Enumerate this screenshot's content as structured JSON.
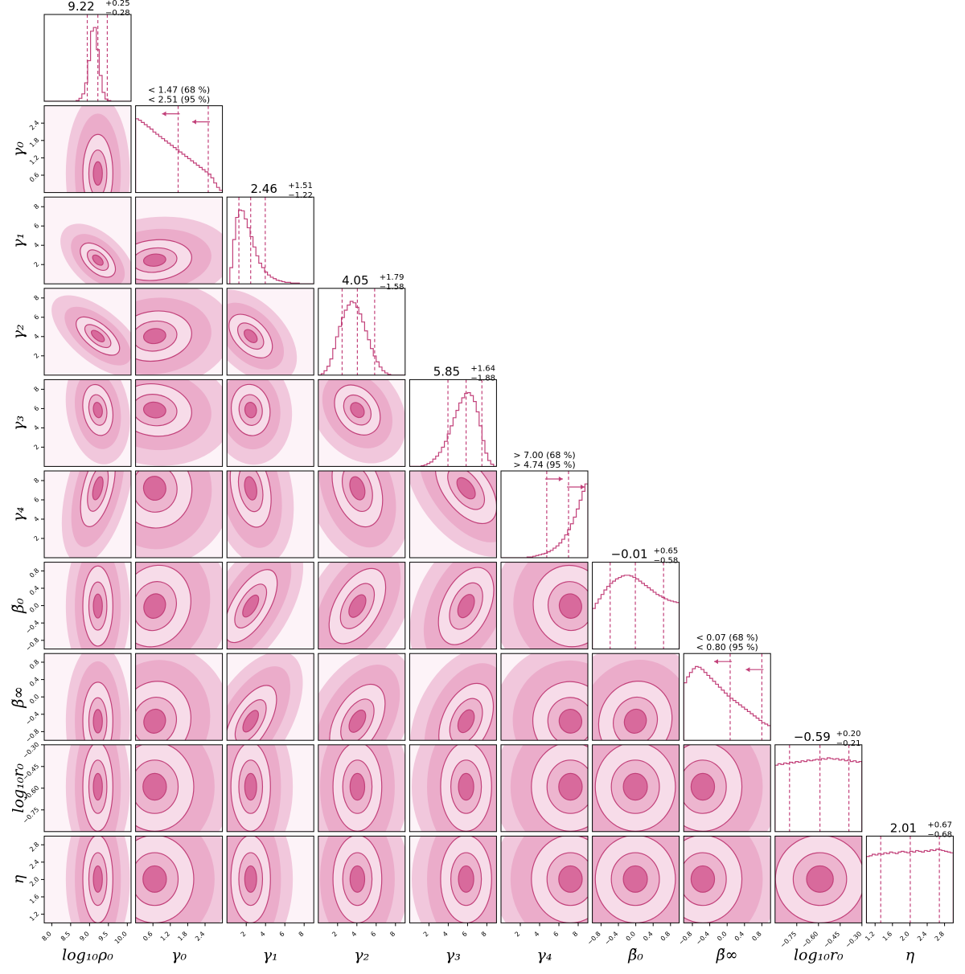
{
  "chart_data": {
    "type": "corner",
    "colors": {
      "main": "#c2417a",
      "fill": "#e8a3c4",
      "light": "#f6dbe8"
    },
    "params": [
      {
        "label": "log₁₀ρ₀",
        "range": [
          7.8,
          10.1
        ],
        "ticks": [
          "8.0",
          "8.5",
          "9.0",
          "9.5",
          "10.0"
        ],
        "tickvals": [
          8.0,
          8.5,
          9.0,
          9.5,
          10.0
        ],
        "title": {
          "kind": "value",
          "value": "9.22",
          "plus": "+0.25",
          "minus": "−0.28"
        },
        "quantiles": [
          8.94,
          9.22,
          9.47
        ],
        "hist": [
          0,
          0,
          0,
          0,
          0,
          0,
          0,
          0,
          0,
          0,
          0,
          1,
          4,
          10,
          25,
          55,
          95,
          100,
          70,
          35,
          12,
          3,
          1,
          0,
          0,
          0,
          0,
          0,
          0,
          0
        ]
      },
      {
        "label": "γ₀",
        "range": [
          0.0,
          3.0
        ],
        "ticks": [
          "0.6",
          "1.2",
          "1.8",
          "2.4"
        ],
        "tickvals": [
          0.6,
          1.2,
          1.8,
          2.4
        ],
        "title": {
          "kind": "limit",
          "l68": "< 1.47 (68 %)",
          "l95": "< 2.51 (95 %)"
        },
        "arrows": [
          1.47,
          2.51
        ],
        "arrowdir": "left",
        "hist": [
          100,
          98,
          95,
          92,
          89,
          86,
          82,
          79,
          76,
          73,
          70,
          67,
          64,
          61,
          58,
          55,
          52,
          49,
          46,
          43,
          40,
          37,
          34,
          31,
          28,
          25,
          20,
          13,
          7,
          3
        ]
      },
      {
        "label": "γ₁",
        "range": [
          0.0,
          9.0
        ],
        "ticks": [
          "2",
          "4",
          "6",
          "8"
        ],
        "tickvals": [
          2,
          4,
          6,
          8
        ],
        "title": {
          "kind": "value",
          "value": "2.46",
          "plus": "+1.51",
          "minus": "−1.22"
        },
        "quantiles": [
          1.24,
          2.46,
          3.97
        ],
        "hist": [
          0,
          22,
          60,
          90,
          100,
          99,
          88,
          76,
          64,
          50,
          38,
          28,
          22,
          16,
          12,
          9,
          7,
          5,
          4,
          3,
          2,
          2,
          1,
          1,
          1,
          0,
          0,
          0,
          0,
          0
        ]
      },
      {
        "label": "γ₂",
        "range": [
          0.0,
          9.0
        ],
        "ticks": [
          "2",
          "4",
          "6",
          "8"
        ],
        "tickvals": [
          2,
          4,
          6,
          8
        ],
        "title": {
          "kind": "value",
          "value": "4.05",
          "plus": "+1.79",
          "minus": "−1.58"
        },
        "quantiles": [
          2.47,
          4.05,
          5.84
        ],
        "hist": [
          0,
          2,
          6,
          12,
          22,
          36,
          52,
          66,
          78,
          88,
          95,
          100,
          98,
          92,
          83,
          72,
          60,
          48,
          36,
          26,
          18,
          11,
          6,
          3,
          1,
          0,
          0,
          0,
          0,
          0
        ]
      },
      {
        "label": "γ₃",
        "range": [
          0.0,
          9.0
        ],
        "ticks": [
          "2",
          "4",
          "6",
          "8"
        ],
        "tickvals": [
          2,
          4,
          6,
          8
        ],
        "title": {
          "kind": "value",
          "value": "5.85",
          "plus": "+1.64",
          "minus": "−1.88"
        },
        "quantiles": [
          3.97,
          5.85,
          7.49
        ],
        "hist": [
          0,
          0,
          0,
          0,
          1,
          2,
          4,
          6,
          10,
          14,
          19,
          26,
          34,
          44,
          55,
          66,
          76,
          86,
          93,
          99,
          100,
          96,
          88,
          74,
          55,
          35,
          18,
          8,
          3,
          0
        ]
      },
      {
        "label": "γ₄",
        "range": [
          0.0,
          9.0
        ],
        "ticks": [
          "2",
          "4",
          "6",
          "8"
        ],
        "tickvals": [
          2,
          4,
          6,
          8
        ],
        "title": {
          "kind": "limit",
          "l68": "> 7.00 (68 %)",
          "l95": "> 4.74 (95 %)"
        },
        "arrows": [
          4.74,
          7.0
        ],
        "arrowdir": "right",
        "hist": [
          0,
          0,
          0,
          0,
          0,
          0,
          0,
          0,
          0,
          1,
          1,
          2,
          3,
          4,
          5,
          6,
          8,
          10,
          13,
          16,
          20,
          25,
          31,
          38,
          46,
          55,
          66,
          78,
          90,
          100
        ]
      },
      {
        "label": "β̃₀",
        "range": [
          -1.0,
          1.0
        ],
        "ticks": [
          "−0.8",
          "−0.4",
          "0.0",
          "0.4",
          "0.8"
        ],
        "tickvals": [
          -0.8,
          -0.4,
          0.0,
          0.4,
          0.8
        ],
        "title": {
          "kind": "value",
          "value": "−0.01",
          "plus": "+0.65",
          "minus": "−0.58"
        },
        "quantiles": [
          -0.59,
          -0.01,
          0.64
        ],
        "hist": [
          55,
          62,
          68,
          74,
          80,
          85,
          89,
          92,
          95,
          97,
          99,
          100,
          100,
          99,
          97,
          95,
          92,
          89,
          86,
          83,
          80,
          77,
          74,
          72,
          70,
          68,
          66,
          65,
          64,
          63
        ]
      },
      {
        "label": "β̃∞",
        "range": [
          -1.0,
          1.0
        ],
        "ticks": [
          "−0.8",
          "−0.4",
          "0.0",
          "0.4",
          "0.8"
        ],
        "tickvals": [
          -0.8,
          -0.4,
          0.0,
          0.4,
          0.8
        ],
        "title": {
          "kind": "limit",
          "l68": "< 0.07 (68 %)",
          "l95": "< 0.80 (95 %)"
        },
        "arrows": [
          0.07,
          0.8
        ],
        "arrowdir": "left",
        "hist": [
          78,
          86,
          92,
          97,
          100,
          99,
          96,
          92,
          88,
          84,
          80,
          76,
          72,
          68,
          64,
          60,
          57,
          54,
          51,
          48,
          45,
          42,
          39,
          36,
          33,
          30,
          27,
          24,
          22,
          20
        ]
      },
      {
        "label": "log₁₀r₀",
        "range": [
          -0.9,
          -0.3
        ],
        "ticks": [
          "−0.75",
          "−0.60",
          "−0.45",
          "−0.30"
        ],
        "tickvals": [
          -0.75,
          -0.6,
          -0.45,
          -0.3
        ],
        "title": {
          "kind": "value",
          "value": "−0.59",
          "plus": "+0.20",
          "minus": "−0.21"
        },
        "quantiles": [
          -0.8,
          -0.59,
          -0.39
        ],
        "hist": [
          90,
          92,
          91,
          93,
          92,
          94,
          93,
          95,
          94,
          96,
          95,
          97,
          96,
          97,
          98,
          97,
          99,
          98,
          100,
          99,
          98,
          99,
          97,
          98,
          96,
          97,
          95,
          96,
          94,
          95
        ]
      },
      {
        "label": "η",
        "range": [
          1.0,
          3.0
        ],
        "ticks": [
          "1.2",
          "1.6",
          "2.0",
          "2.4",
          "2.8"
        ],
        "tickvals": [
          1.2,
          1.6,
          2.0,
          2.4,
          2.8
        ],
        "title": {
          "kind": "value",
          "value": "2.01",
          "plus": "+0.67",
          "minus": "−0.68"
        },
        "quantiles": [
          1.33,
          2.01,
          2.68
        ],
        "hist": [
          90,
          91,
          93,
          92,
          94,
          93,
          95,
          94,
          96,
          95,
          94,
          96,
          97,
          96,
          95,
          97,
          96,
          98,
          97,
          96,
          98,
          97,
          99,
          98,
          100,
          99,
          98,
          97,
          96,
          95
        ]
      }
    ],
    "correlations": [
      [],
      [
        0.0
      ],
      [
        0.8,
        0.2
      ],
      [
        0.75,
        0.2,
        0.8
      ],
      [
        0.1,
        -0.2,
        0.1,
        0.7
      ],
      [
        -0.1,
        0.2,
        0.1,
        0.2,
        0.5
      ],
      [
        0.0,
        -0.4,
        -0.3,
        -0.35,
        -0.3,
        0.2
      ],
      [
        0.0,
        -0.35,
        -0.3,
        -0.35,
        -0.3,
        0.15,
        -0.4
      ],
      [
        0.0,
        0.0,
        0.0,
        0.0,
        0.0,
        0.0,
        0.0,
        0.0
      ],
      [
        0.0,
        0.0,
        0.0,
        0.0,
        0.0,
        0.0,
        0.0,
        0.0,
        0.0
      ]
    ]
  }
}
